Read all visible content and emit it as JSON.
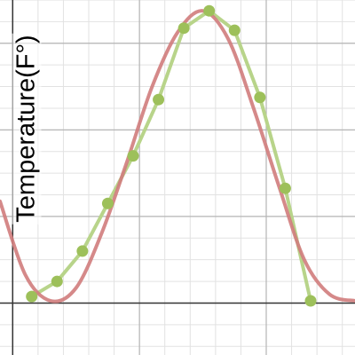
{
  "chart_data": {
    "type": "line",
    "ylabel": "Temperature(F°)",
    "xlabel": "",
    "title": "",
    "xlim": [
      -0.5,
      13.5
    ],
    "ylim": [
      -12,
      70
    ],
    "grid": true,
    "x_major_step": 5,
    "y_major_step": 20,
    "x_minor_step": 1,
    "y_minor_step": 5,
    "series": [
      {
        "kind": "points",
        "color": "#9dc05a",
        "line_color": "#b8d48a",
        "x": [
          0.75,
          1.75,
          2.75,
          3.75,
          4.75,
          5.75,
          6.75,
          7.75,
          8.75,
          9.75,
          10.75,
          11.75
        ],
        "y": [
          1.5,
          5.0,
          12.0,
          23.0,
          34.0,
          47.0,
          63.5,
          67.5,
          63.0,
          47.5,
          26.5,
          0.5
        ]
      },
      {
        "kind": "curve",
        "color": "#d07c7c",
        "x": [
          -0.5,
          0.5,
          1.5,
          2.5,
          3.5,
          4.5,
          5.5,
          6.5,
          7.5,
          8.5,
          9.5,
          10.5,
          11.5,
          12.5,
          13.5
        ],
        "y": [
          23.5,
          6.5,
          0.5,
          3.5,
          16.0,
          32.5,
          50.0,
          62.5,
          67.5,
          61.0,
          45.0,
          27.0,
          10.0,
          2.0,
          0.5
        ]
      }
    ]
  }
}
